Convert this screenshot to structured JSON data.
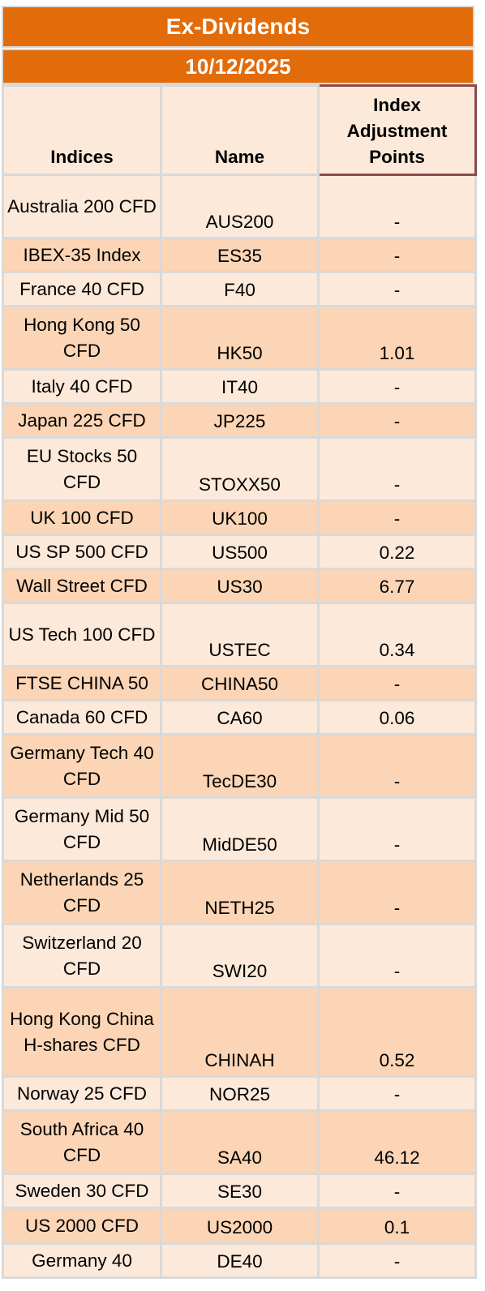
{
  "header": {
    "title": "Ex-Dividends",
    "date": "10/12/2025"
  },
  "columns": {
    "indices": "Indices",
    "name": "Name",
    "adjustment": "Index Adjustment Points"
  },
  "rows": [
    {
      "index": "Australia 200 CFD",
      "name": "AUS200",
      "points": "-"
    },
    {
      "index": "IBEX-35 Index",
      "name": "ES35",
      "points": "-"
    },
    {
      "index": "France 40 CFD",
      "name": "F40",
      "points": "-"
    },
    {
      "index": "Hong Kong 50 CFD",
      "name": "HK50",
      "points": "1.01"
    },
    {
      "index": "Italy 40 CFD",
      "name": "IT40",
      "points": "-"
    },
    {
      "index": "Japan 225 CFD",
      "name": "JP225",
      "points": "-"
    },
    {
      "index": "EU Stocks 50 CFD",
      "name": "STOXX50",
      "points": "-"
    },
    {
      "index": "UK 100 CFD",
      "name": "UK100",
      "points": "-"
    },
    {
      "index": "US SP 500 CFD",
      "name": "US500",
      "points": "0.22"
    },
    {
      "index": "Wall Street CFD",
      "name": "US30",
      "points": "6.77"
    },
    {
      "index": "US Tech 100 CFD",
      "name": "USTEC",
      "points": "0.34"
    },
    {
      "index": "FTSE CHINA 50",
      "name": "CHINA50",
      "points": "-"
    },
    {
      "index": "Canada 60 CFD",
      "name": "CA60",
      "points": "0.06"
    },
    {
      "index": "Germany Tech 40 CFD",
      "name": "TecDE30",
      "points": "-"
    },
    {
      "index": "Germany Mid 50 CFD",
      "name": "MidDE50",
      "points": "-"
    },
    {
      "index": "Netherlands 25 CFD",
      "name": "NETH25",
      "points": "-"
    },
    {
      "index": "Switzerland 20 CFD",
      "name": "SWI20",
      "points": "-"
    },
    {
      "index": "Hong Kong China H-shares CFD",
      "name": "CHINAH",
      "points": "0.52"
    },
    {
      "index": "Norway 25 CFD",
      "name": "NOR25",
      "points": "-"
    },
    {
      "index": "South Africa 40 CFD",
      "name": "SA40",
      "points": "46.12"
    },
    {
      "index": "Sweden 30 CFD",
      "name": "SE30",
      "points": "-"
    },
    {
      "index": "US 2000 CFD",
      "name": "US2000",
      "points": "0.1"
    },
    {
      "index": "Germany 40",
      "name": "DE40",
      "points": "-"
    }
  ],
  "colors": {
    "banner": "#e26b0a",
    "row_light": "#fde9d9",
    "row_dark": "#fbd5b5",
    "grid": "#d9d9d9"
  }
}
